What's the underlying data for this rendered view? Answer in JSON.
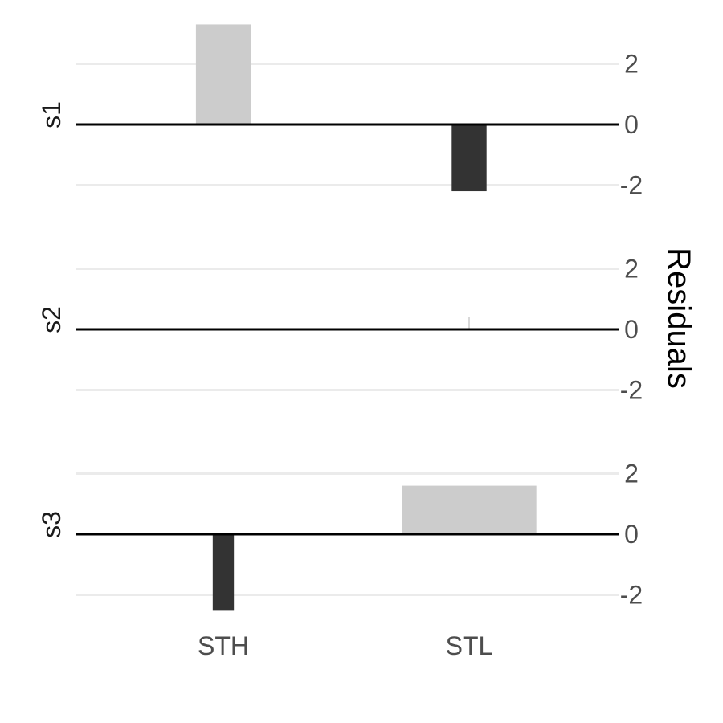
{
  "chart_data": {
    "type": "bar",
    "categories": [
      "STH",
      "STL"
    ],
    "panels": [
      {
        "label": "s1",
        "values": [
          3.3,
          -2.2
        ],
        "widths": [
          0.22,
          0.14
        ]
      },
      {
        "label": "s2",
        "values": [
          0.0,
          0.4
        ],
        "widths": [
          0.22,
          0.005
        ]
      },
      {
        "label": "s3",
        "values": [
          -2.5,
          1.6
        ],
        "widths": [
          0.085,
          0.54
        ]
      }
    ],
    "ylabel": "Residuals",
    "ylim": [
      -3.2,
      3.3
    ],
    "yticks": [
      -2,
      0,
      2
    ],
    "ytick_labels": [
      "-2",
      "0",
      "2"
    ],
    "colors": {
      "positive": "#cccccc",
      "negative": "#333333",
      "zero_line": "#000000",
      "grid": "#ebebeb"
    },
    "grid": true,
    "y_axis_position": "right"
  }
}
